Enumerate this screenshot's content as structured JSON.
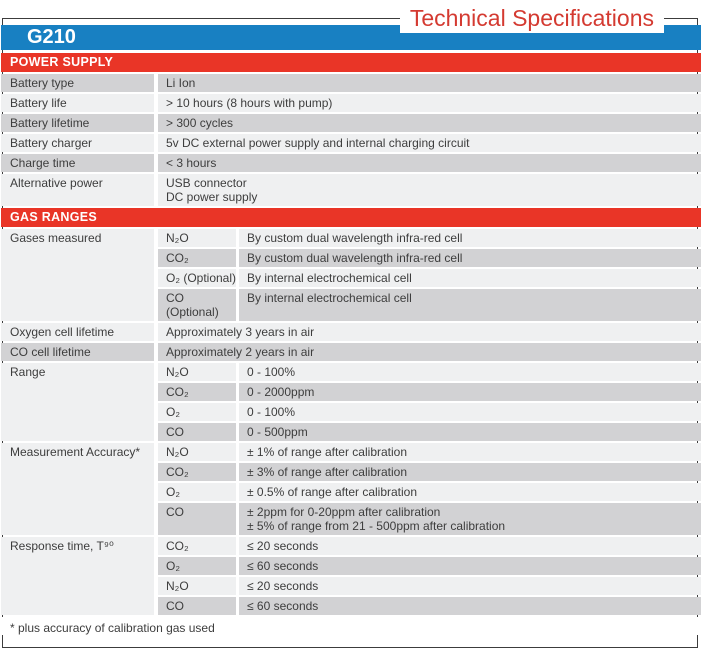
{
  "title": "Technical Specifications",
  "model": "G210",
  "footnote": "* plus accuracy of calibration gas used",
  "colors": {
    "header_blue": "#1880c2",
    "section_red": "#e93527",
    "title_red": "#d43a31",
    "row_dark": "#d2d2d4",
    "row_light": "#eff0f1",
    "text": "#3d3d3d",
    "border": "#3c3c3c"
  },
  "sections": [
    {
      "header": "POWER SUPPLY",
      "stripe_start": "dark",
      "rows": [
        {
          "label": "Battery type",
          "value": "Li Ion"
        },
        {
          "label": "Battery life",
          "value": "> 10 hours (8 hours with pump)"
        },
        {
          "label": "Battery lifetime",
          "value": "> 300 cycles"
        },
        {
          "label": "Battery charger",
          "value": "5v DC external power supply and internal charging circuit"
        },
        {
          "label": "Charge time",
          "value": "< 3 hours"
        },
        {
          "label": "Alternative power",
          "value": "USB connector\nDC power supply"
        }
      ]
    },
    {
      "header": "GAS RANGES",
      "stripe_start": "light",
      "rows": [
        {
          "label": "Gases measured",
          "subrows": [
            {
              "gas": "N₂O",
              "value": "By custom dual wavelength infra-red cell"
            },
            {
              "gas": "CO₂",
              "value": "By custom dual wavelength infra-red cell"
            },
            {
              "gas": "O₂ (Optional)",
              "value": "By internal electrochemical cell"
            },
            {
              "gas": "CO\n(Optional)",
              "value": "By internal electrochemical cell"
            }
          ]
        },
        {
          "label": "Oxygen cell lifetime",
          "value": "Approximately 3 years in air"
        },
        {
          "label": "CO cell lifetime",
          "value": "Approximately 2 years in air"
        },
        {
          "label": "Range",
          "subrows": [
            {
              "gas": "N₂O",
              "value": "0 - 100%"
            },
            {
              "gas": "CO₂",
              "value": "0 - 2000ppm"
            },
            {
              "gas": "O₂",
              "value": "0 - 100%"
            },
            {
              "gas": "CO",
              "value": "0 - 500ppm"
            }
          ]
        },
        {
          "label": "Measurement Accuracy*",
          "subrows": [
            {
              "gas": "N₂O",
              "value": "± 1% of range after calibration"
            },
            {
              "gas": "CO₂",
              "value": "± 3% of range after calibration"
            },
            {
              "gas": "O₂",
              "value": "± 0.5% of range after calibration"
            },
            {
              "gas": "CO",
              "value": "± 2ppm  for 0-20ppm after calibration\n± 5% of range from 21 - 500ppm after calibration"
            }
          ]
        },
        {
          "label": "Response time, T⁹⁰",
          "subrows": [
            {
              "gas": "CO₂",
              "value": "≤ 20 seconds"
            },
            {
              "gas": "O₂",
              "value": "≤ 60 seconds"
            },
            {
              "gas": "N₂O",
              "value": "≤ 20 seconds"
            },
            {
              "gas": "CO",
              "value": "≤ 60 seconds"
            }
          ]
        }
      ]
    }
  ]
}
